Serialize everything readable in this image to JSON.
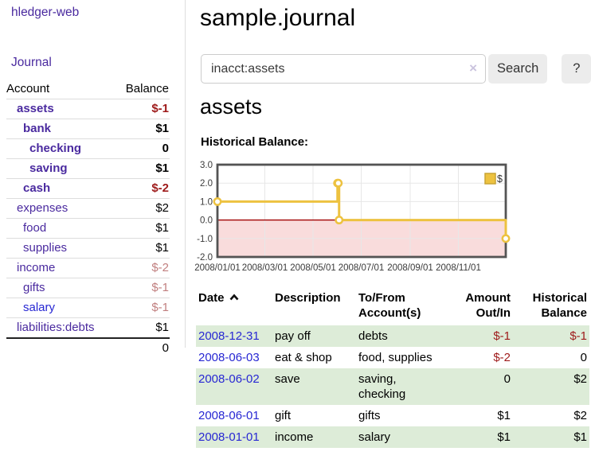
{
  "app": {
    "brand": "hledger-web"
  },
  "nav": {
    "journal": "Journal"
  },
  "colors": {
    "link_purple": "#4a2a9f",
    "link_blue": "#2727d3",
    "negative_strong_red": "#9e1a1a",
    "negative_soft_red": "#c17f7f",
    "row_stripe_green": "#ddecd8",
    "chart_series_yellow": "#edc240",
    "chart_negative_region_pink": "#f9dcdc",
    "chart_zero_line_red": "#a00000"
  },
  "sidebar": {
    "header": {
      "account": "Account",
      "balance": "Balance"
    },
    "accounts": [
      {
        "label": "assets",
        "balance": "$-1",
        "depth": 1,
        "bold": true,
        "balance_class": "neg-strong"
      },
      {
        "label": "bank",
        "balance": "$1",
        "depth": 2,
        "bold": true,
        "balance_class": "normal"
      },
      {
        "label": "checking",
        "balance": "0",
        "depth": 3,
        "bold": true,
        "balance_class": "normal"
      },
      {
        "label": "saving",
        "balance": "$1",
        "depth": 3,
        "bold": true,
        "balance_class": "normal"
      },
      {
        "label": "cash",
        "balance": "$-2",
        "depth": 2,
        "bold": true,
        "balance_class": "neg-strong"
      },
      {
        "label": "expenses",
        "balance": "$2",
        "depth": 1,
        "bold": false,
        "balance_class": "normal"
      },
      {
        "label": "food",
        "balance": "$1",
        "depth": 2,
        "bold": false,
        "balance_class": "normal"
      },
      {
        "label": "supplies",
        "balance": "$1",
        "depth": 2,
        "bold": false,
        "balance_class": "normal"
      },
      {
        "label": "income",
        "balance": "$-2",
        "depth": 1,
        "bold": false,
        "balance_class": "neg-soft"
      },
      {
        "label": "gifts",
        "balance": "$-1",
        "depth": 2,
        "bold": false,
        "balance_class": "neg-soft"
      },
      {
        "label": "salary",
        "balance": "$-1",
        "depth": 2,
        "bold": false,
        "balance_class": "neg-soft",
        "link_style": "blue"
      },
      {
        "label": "liabilities:debts",
        "balance": "$1",
        "depth": 1,
        "bold": false,
        "balance_class": "normal"
      }
    ],
    "total": "0"
  },
  "main": {
    "title": "sample.journal",
    "search": {
      "value": "inacct:assets",
      "clear_icon": "×",
      "button_label": "Search",
      "help_label": "?"
    },
    "account_heading": "assets",
    "chart_label": "Historical Balance:"
  },
  "chart_data": {
    "type": "line",
    "step": true,
    "title": "Historical Balance:",
    "series": [
      {
        "name": "$",
        "color": "#edc240",
        "points": [
          [
            "2008-01-01",
            1
          ],
          [
            "2008-06-01",
            2
          ],
          [
            "2008-06-02",
            2
          ],
          [
            "2008-06-03",
            0
          ],
          [
            "2008-12-31",
            -1
          ]
        ]
      }
    ],
    "xlim": [
      "2008-01-01",
      "2008-12-31"
    ],
    "ylim": [
      -2,
      3
    ],
    "x_tick_labels": [
      "2008/01/01",
      "2008/03/01",
      "2008/05/01",
      "2008/07/01",
      "2008/09/01",
      "2008/11/01"
    ],
    "y_tick_labels": [
      "3.0",
      "2.0",
      "1.0",
      "0.0",
      "-1.0",
      "-2.0"
    ],
    "y_tick_values": [
      3,
      2,
      1,
      0,
      -1,
      -2
    ],
    "grid": true,
    "legend": {
      "position": "top-right",
      "entries": [
        {
          "label": "$",
          "swatch_color": "#edc240"
        }
      ]
    },
    "negative_region_fill": "#f9dcdc",
    "zero_line_color": "#a00000"
  },
  "transactions": {
    "headers": [
      {
        "line1": "Date",
        "line2": "",
        "align": "left",
        "sorted": "ascending"
      },
      {
        "line1": "Description",
        "line2": "",
        "align": "left"
      },
      {
        "line1": "To/From",
        "line2": "Account(s)",
        "align": "left"
      },
      {
        "line1": "Amount",
        "line2": "Out/In",
        "align": "right"
      },
      {
        "line1": "Historical",
        "line2": "Balance",
        "align": "right"
      }
    ],
    "rows": [
      {
        "date": "2008-12-31",
        "description": "pay off",
        "accounts": "debts",
        "amount": "$-1",
        "amount_negative": true,
        "balance": "$-1",
        "balance_negative": true
      },
      {
        "date": "2008-06-03",
        "description": "eat & shop",
        "accounts": "food, supplies",
        "amount": "$-2",
        "amount_negative": true,
        "balance": "0",
        "balance_negative": false
      },
      {
        "date": "2008-06-02",
        "description": "save",
        "accounts": "saving, checking",
        "amount": "0",
        "amount_negative": false,
        "balance": "$2",
        "balance_negative": false
      },
      {
        "date": "2008-06-01",
        "description": "gift",
        "accounts": "gifts",
        "amount": "$1",
        "amount_negative": false,
        "balance": "$2",
        "balance_negative": false
      },
      {
        "date": "2008-01-01",
        "description": "income",
        "accounts": "salary",
        "amount": "$1",
        "amount_negative": false,
        "balance": "$1",
        "balance_negative": false
      }
    ]
  }
}
